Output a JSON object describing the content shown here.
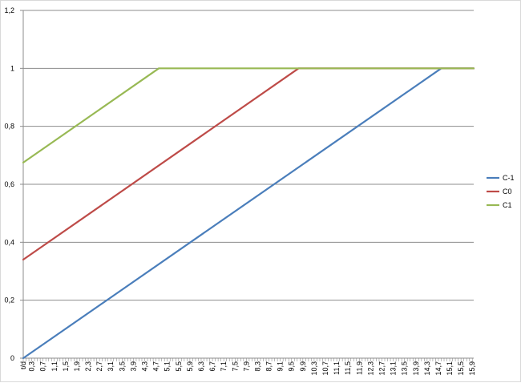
{
  "chart_data": {
    "type": "line",
    "title": "",
    "xlabel": "",
    "ylabel": "",
    "x": [
      "t/d",
      "0,3",
      "0,7",
      "1,1",
      "1,5",
      "1,9",
      "2,3",
      "2,7",
      "3,1",
      "3,5",
      "3,9",
      "4,3",
      "4,7",
      "5,1",
      "5,5",
      "5,9",
      "6,3",
      "6,7",
      "7,1",
      "7,5",
      "7,9",
      "8,3",
      "8,7",
      "9,1",
      "9,5",
      "9,9",
      "10,3",
      "10,7",
      "11,1",
      "11,5",
      "11,9",
      "12,3",
      "12,7",
      "13,1",
      "13,5",
      "13,9",
      "14,3",
      "14,7",
      "15,1",
      "15,5",
      "15,9"
    ],
    "x_values": [
      0,
      0.3,
      0.7,
      1.1,
      1.5,
      1.9,
      2.3,
      2.7,
      3.1,
      3.5,
      3.9,
      4.3,
      4.7,
      5.1,
      5.5,
      5.9,
      6.3,
      6.7,
      7.1,
      7.5,
      7.9,
      8.3,
      8.7,
      9.1,
      9.5,
      9.9,
      10.3,
      10.7,
      11.1,
      11.5,
      11.9,
      12.3,
      12.7,
      13.1,
      13.5,
      13.9,
      14.3,
      14.7,
      15.1,
      15.5,
      15.9
    ],
    "xlim": [
      0,
      15.95
    ],
    "ylim": [
      0,
      1.2
    ],
    "yticks": [
      0,
      0.2,
      0.4,
      0.6,
      0.8,
      1,
      1.2
    ],
    "ytick_labels": [
      "0",
      "0,2",
      "0,4",
      "0,6",
      "0,8",
      "1",
      "1,2"
    ],
    "grid": true,
    "legend_position": "right",
    "series": [
      {
        "name": "C-1",
        "color": "#4a7ebb",
        "points": [
          [
            0,
            0
          ],
          [
            14.8,
            1
          ],
          [
            15.95,
            1
          ]
        ]
      },
      {
        "name": "C0",
        "color": "#be4b48",
        "points": [
          [
            0,
            0.34
          ],
          [
            9.75,
            1
          ],
          [
            15.95,
            1
          ]
        ]
      },
      {
        "name": "C1",
        "color": "#98b954",
        "points": [
          [
            0,
            0.675
          ],
          [
            4.8,
            1
          ],
          [
            15.95,
            1
          ]
        ]
      }
    ]
  }
}
